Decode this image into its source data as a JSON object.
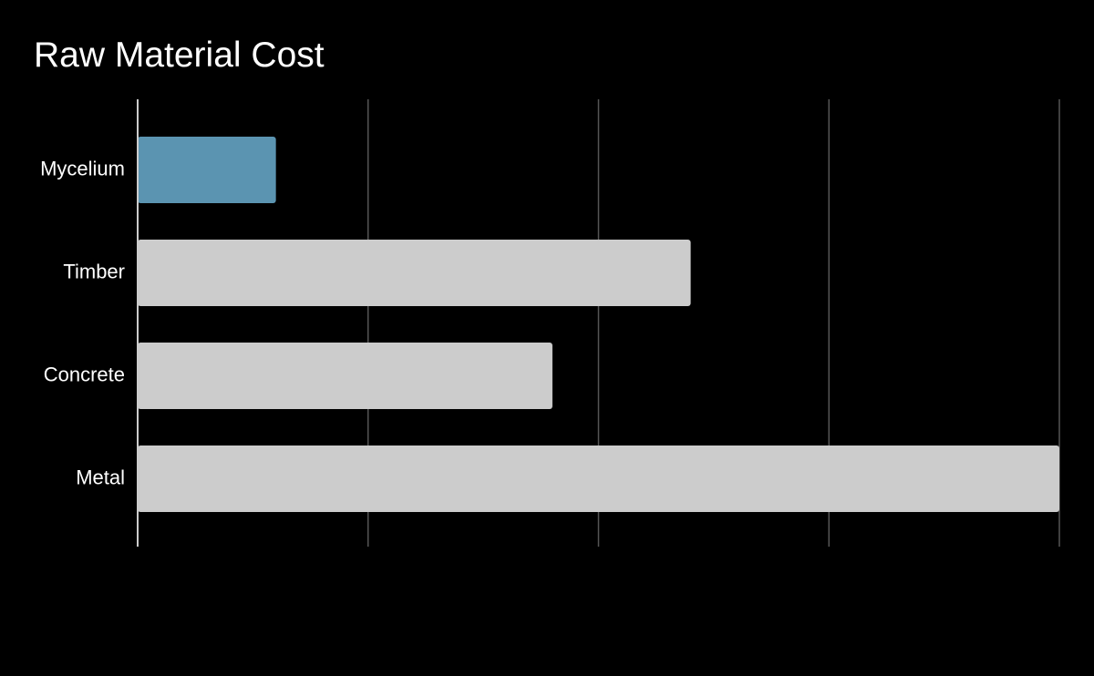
{
  "chart_data": {
    "type": "bar",
    "orientation": "horizontal",
    "title": "Raw Material Cost",
    "xlabel": "",
    "ylabel": "",
    "categories": [
      "Mycelium",
      "Timber",
      "Concrete",
      "Metal"
    ],
    "values": [
      0.6,
      2.4,
      1.8,
      4.0
    ],
    "xlim": [
      0,
      4
    ],
    "grid": true,
    "value_axis_tick_labels_shown": false,
    "highlight_category": "Mycelium",
    "colors": {
      "highlight": "#5b94b1",
      "default": "#cccccc",
      "background": "#000000",
      "gridline": "#555555",
      "axis": "#cccccc",
      "text": "#ffffff"
    }
  }
}
